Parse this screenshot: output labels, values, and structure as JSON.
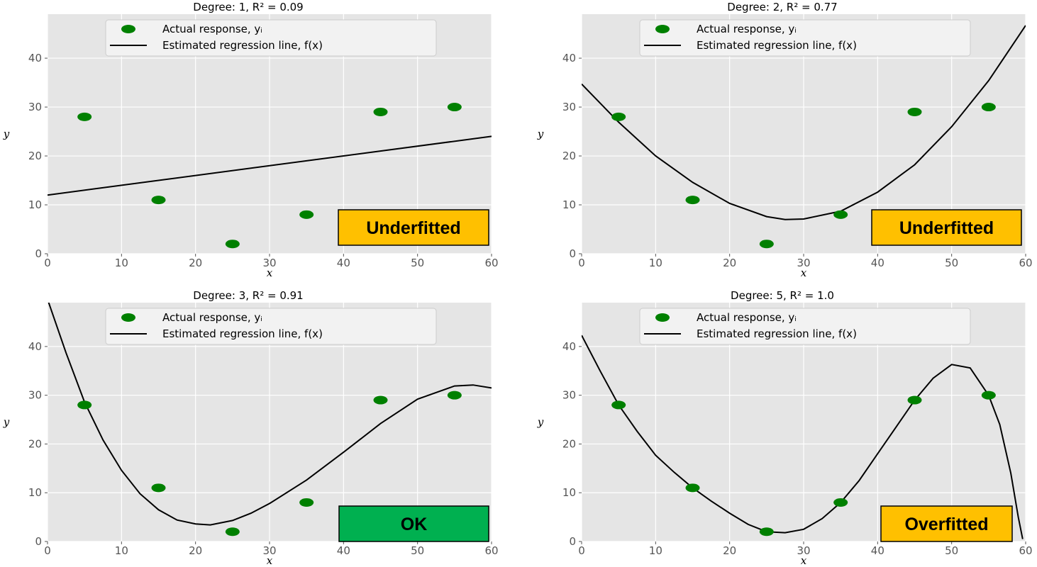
{
  "chart_data": [
    {
      "type": "scatter",
      "title": "Degree: 1, R² = 0.09",
      "xlabel": "x",
      "ylabel": "y",
      "xlim": [
        0,
        60
      ],
      "ylim": [
        0,
        49
      ],
      "xticks": [
        0,
        10,
        20,
        30,
        40,
        50,
        60
      ],
      "yticks": [
        0,
        10,
        20,
        30,
        40
      ],
      "grid": true,
      "legend_position": "top-center",
      "series": [
        {
          "name": "Actual response, yᵢ",
          "kind": "scatter",
          "color": "#008000",
          "x": [
            5,
            15,
            25,
            35,
            45,
            55
          ],
          "y": [
            28,
            11,
            2,
            8,
            29,
            30
          ]
        },
        {
          "name": "Estimated regression line, f(x)",
          "kind": "line",
          "color": "#000000",
          "x": [
            0,
            60
          ],
          "y": [
            12,
            24
          ]
        }
      ],
      "annotation": {
        "text": "Underfitted",
        "color": "#FFC000"
      }
    },
    {
      "type": "scatter",
      "title": "Degree: 2, R² = 0.77",
      "xlabel": "x",
      "ylabel": "y",
      "xlim": [
        0,
        60
      ],
      "ylim": [
        0,
        49
      ],
      "xticks": [
        0,
        10,
        20,
        30,
        40,
        50,
        60
      ],
      "yticks": [
        0,
        10,
        20,
        30,
        40
      ],
      "grid": true,
      "legend_position": "top-center",
      "series": [
        {
          "name": "Actual response, yᵢ",
          "kind": "scatter",
          "color": "#008000",
          "x": [
            5,
            15,
            25,
            35,
            45,
            55
          ],
          "y": [
            28,
            11,
            2,
            8,
            29,
            30
          ]
        },
        {
          "name": "Estimated regression line, f(x)",
          "kind": "line",
          "color": "#000000",
          "x": [
            0,
            5,
            10,
            15,
            20,
            25,
            27.5,
            30,
            35,
            40,
            45,
            50,
            55,
            60
          ],
          "y": [
            34.7,
            26.9,
            20.0,
            14.6,
            10.3,
            7.6,
            7.0,
            7.1,
            8.7,
            12.6,
            18.2,
            26.0,
            35.4,
            46.7
          ]
        }
      ],
      "annotation": {
        "text": "Underfitted",
        "color": "#FFC000"
      }
    },
    {
      "type": "scatter",
      "title": "Degree: 3, R² = 0.91",
      "xlabel": "x",
      "ylabel": "y",
      "xlim": [
        0,
        60
      ],
      "ylim": [
        0,
        49
      ],
      "xticks": [
        0,
        10,
        20,
        30,
        40,
        50,
        60
      ],
      "yticks": [
        0,
        10,
        20,
        30,
        40
      ],
      "grid": true,
      "legend_position": "top-center",
      "series": [
        {
          "name": "Actual response, yᵢ",
          "kind": "scatter",
          "color": "#008000",
          "x": [
            5,
            15,
            25,
            35,
            45,
            55
          ],
          "y": [
            28,
            11,
            2,
            8,
            29,
            30
          ]
        },
        {
          "name": "Estimated regression line, f(x)",
          "kind": "line",
          "color": "#000000",
          "x": [
            0,
            2.5,
            5,
            7.5,
            10,
            12.5,
            15,
            17.5,
            20,
            22,
            25,
            27.5,
            30,
            35,
            40,
            45,
            50,
            55,
            57.5,
            60
          ],
          "y": [
            49.7,
            38.7,
            28.6,
            20.8,
            14.6,
            9.8,
            6.5,
            4.4,
            3.6,
            3.4,
            4.3,
            5.8,
            7.8,
            12.6,
            18.3,
            24.2,
            29.2,
            31.9,
            32.1,
            31.5
          ]
        }
      ],
      "annotation": {
        "text": "OK",
        "color": "#00B050"
      }
    },
    {
      "type": "scatter",
      "title": "Degree: 5, R² = 1.0",
      "xlabel": "x",
      "ylabel": "y",
      "xlim": [
        0,
        60
      ],
      "ylim": [
        0,
        49
      ],
      "xticks": [
        0,
        10,
        20,
        30,
        40,
        50,
        60
      ],
      "yticks": [
        0,
        10,
        20,
        30,
        40
      ],
      "grid": true,
      "legend_position": "top-center",
      "series": [
        {
          "name": "Actual response, yᵢ",
          "kind": "scatter",
          "color": "#008000",
          "x": [
            5,
            15,
            25,
            35,
            45,
            55
          ],
          "y": [
            28,
            11,
            2,
            8,
            29,
            30
          ]
        },
        {
          "name": "Estimated regression line, f(x)",
          "kind": "line",
          "color": "#000000",
          "x": [
            0,
            2.5,
            5,
            7.5,
            10,
            12.5,
            15,
            17.5,
            20,
            22.5,
            25,
            27.5,
            30,
            32.5,
            35,
            37.5,
            40,
            42.5,
            45,
            47.5,
            50,
            52.5,
            55,
            56.5,
            58,
            59,
            59.6
          ],
          "y": [
            42.3,
            35.0,
            28.0,
            22.6,
            17.7,
            14.2,
            11.0,
            8.3,
            5.8,
            3.5,
            2.0,
            1.8,
            2.5,
            4.7,
            8.0,
            12.5,
            18.0,
            23.5,
            29.0,
            33.5,
            36.3,
            35.6,
            30.0,
            24.0,
            14.0,
            5.0,
            0.5
          ]
        }
      ],
      "annotation": {
        "text": "Overfitted",
        "color": "#FFC000"
      }
    }
  ]
}
